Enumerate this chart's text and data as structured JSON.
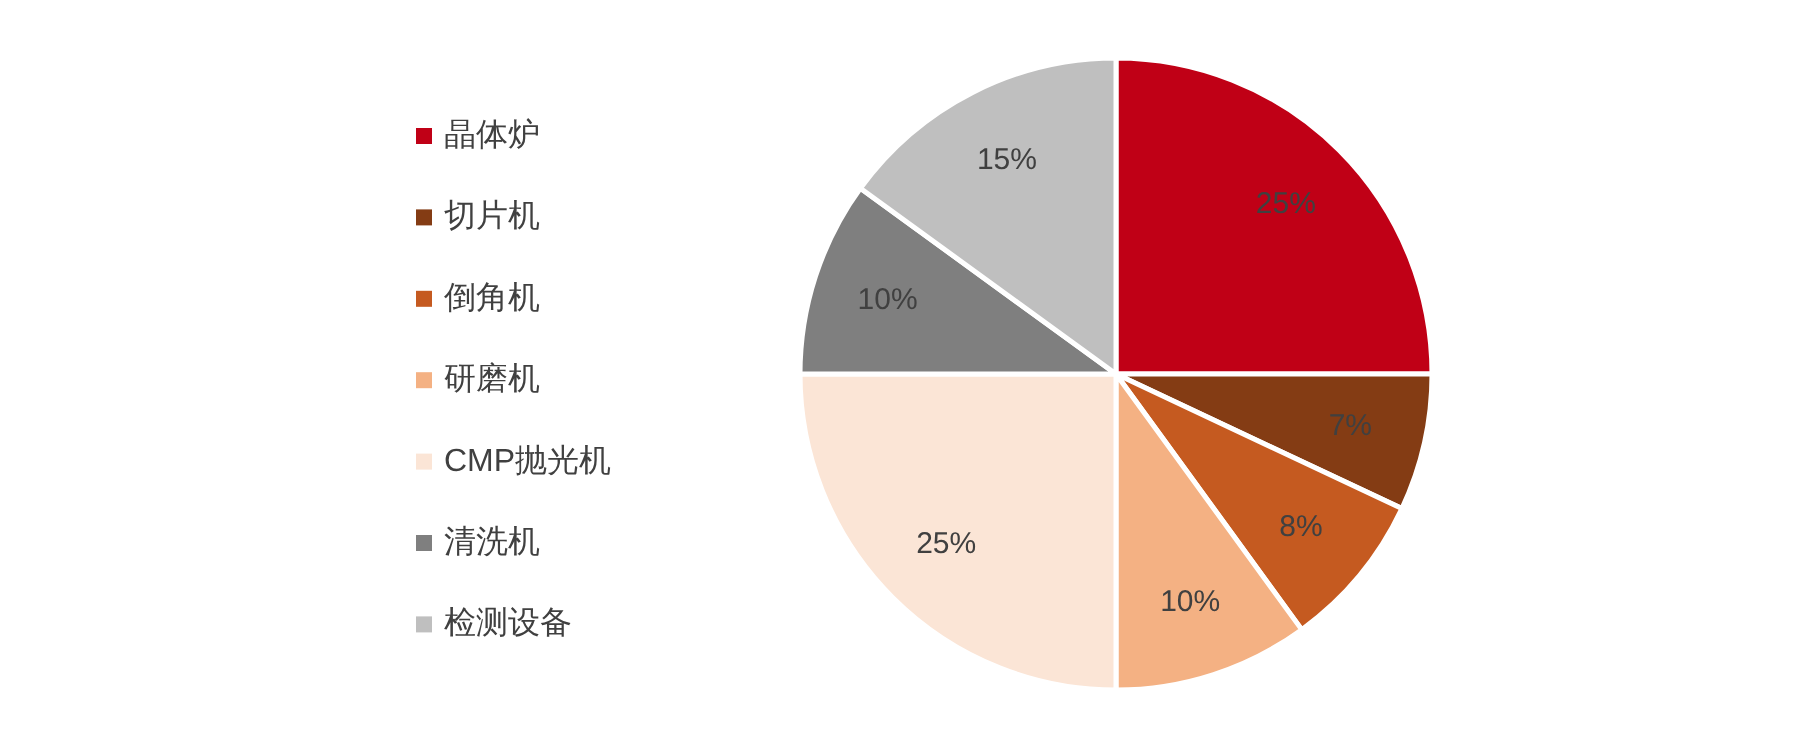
{
  "chart_data": {
    "type": "pie",
    "categories": [
      "晶体炉",
      "切片机",
      "倒角机",
      "研磨机",
      "CMP抛光机",
      "清洗机",
      "检测设备"
    ],
    "values": [
      25,
      7,
      8,
      10,
      25,
      10,
      15
    ],
    "colors": [
      "#c00016",
      "#843c14",
      "#c55a20",
      "#f4b183",
      "#fbe5d6",
      "#7f7f7f",
      "#bfbfbf"
    ],
    "value_labels": [
      "25%",
      "7%",
      "8%",
      "10%",
      "25%",
      "10%",
      "15%"
    ],
    "legend": "left"
  }
}
